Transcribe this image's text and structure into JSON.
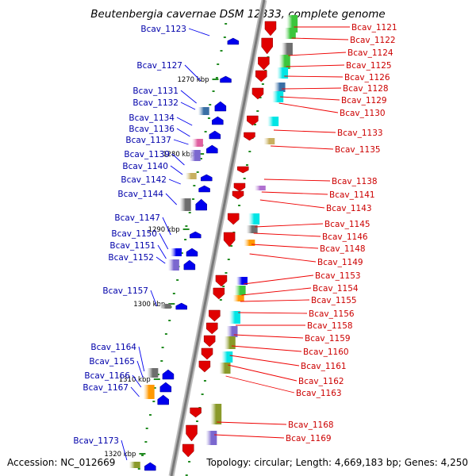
{
  "title": "Beutenbergia cavernae DSM 12333, complete genome",
  "footer": {
    "accession": "Accession: NC_012669",
    "topology": "Topology: circular; Length: 4,669,183 bp; Genes: 4,250"
  },
  "colors": {
    "forward": "#0000ee",
    "reverse": "#ee0000",
    "left_label": "#0000aa",
    "right_label": "#cc0000",
    "backbone": "#8c8c8c",
    "tick": "#228b22"
  },
  "ticks": [
    "1270 kbp",
    "1280 kbp",
    "1290 kbp",
    "1300 kbp",
    "1310 kbp",
    "1320 kbp"
  ],
  "left_genes": [
    "Bcav_1123",
    "Bcav_1127",
    "Bcav_1131",
    "Bcav_1132",
    "Bcav_1134",
    "Bcav_1136",
    "Bcav_1137",
    "Bcav_1139",
    "Bcav_1140",
    "Bcav_1142",
    "Bcav_1144",
    "Bcav_1147",
    "Bcav_1150",
    "Bcav_1151",
    "Bcav_1152",
    "Bcav_1157",
    "Bcav_1164",
    "Bcav_1165",
    "Bcav_1166",
    "Bcav_1167",
    "Bcav_1173"
  ],
  "right_genes": [
    "Bcav_1121",
    "Bcav_1122",
    "Bcav_1124",
    "Bcav_1125",
    "Bcav_1126",
    "Bcav_1128",
    "Bcav_1129",
    "Bcav_1130",
    "Bcav_1133",
    "Bcav_1135",
    "Bcav_1138",
    "Bcav_1141",
    "Bcav_1143",
    "Bcav_1145",
    "Bcav_1146",
    "Bcav_1148",
    "Bcav_1149",
    "Bcav_1153",
    "Bcav_1154",
    "Bcav_1155",
    "Bcav_1156",
    "Bcav_1158",
    "Bcav_1159",
    "Bcav_1160",
    "Bcav_1161",
    "Bcav_1162",
    "Bcav_1163",
    "Bcav_1168",
    "Bcav_1169"
  ]
}
